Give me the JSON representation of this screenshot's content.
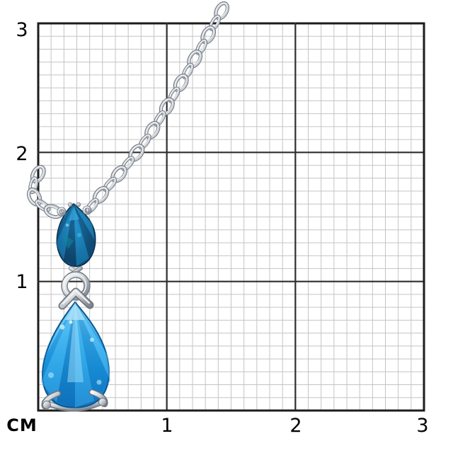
{
  "page": {
    "background_color": "#ffffff",
    "content_description": "Silver cable chain with a pendant of two pear-cut blue topaz stones photographed over a centimeter measurement grid"
  },
  "ruler": {
    "unit_label": "СМ",
    "y_axis_labels": [
      "3",
      "2",
      "1"
    ],
    "x_axis_labels": [
      "1",
      "2",
      "3"
    ],
    "centimeters": 3,
    "subdivisions_per_cm": 10,
    "colors": {
      "minor_line": "#c4c4c4",
      "major_line": "#2e2e2e",
      "border_line": "#1c1c1c",
      "label_text": "#000000"
    }
  },
  "pendant": {
    "chain": {
      "style": "oval-cable-links",
      "color": "#ccd0d6",
      "outline": "#6e747d",
      "highlight": "#f4f6f8"
    },
    "small_stone": {
      "cut": "pear",
      "colors": {
        "light": "#2a95cf",
        "base": "#166191",
        "dark": "#0c3a61",
        "rim": "#0a2c48"
      }
    },
    "large_stone": {
      "cut": "pear",
      "colors": {
        "light": "#8edcfb",
        "base": "#3fb3f0",
        "mid": "#1b95dd",
        "dark": "#1173c0",
        "rim": "#0b568f"
      }
    },
    "metal": {
      "light": "#f8fafb",
      "base": "#d5d9de",
      "mid": "#9ba2ab",
      "dark": "#7d848d"
    }
  }
}
